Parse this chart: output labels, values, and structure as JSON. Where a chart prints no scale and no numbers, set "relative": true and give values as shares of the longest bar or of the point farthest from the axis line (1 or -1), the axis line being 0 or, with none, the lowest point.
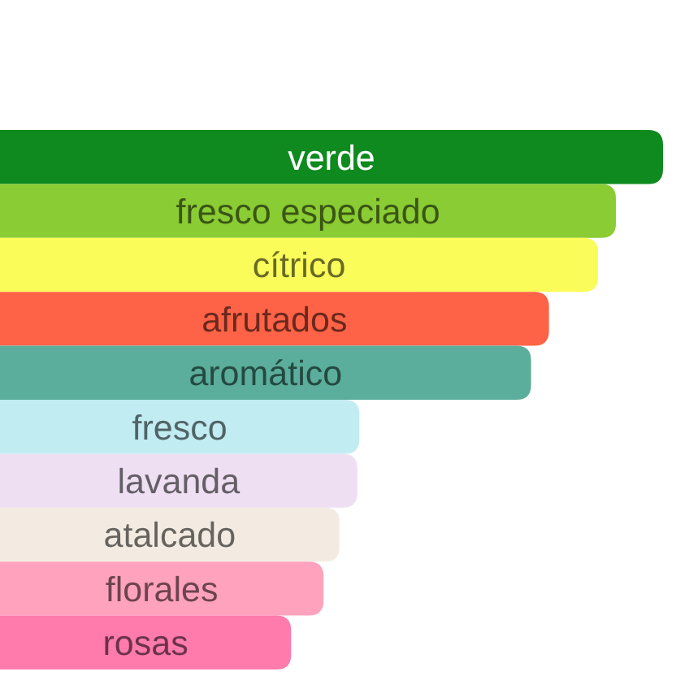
{
  "chart_data": {
    "type": "bar",
    "orientation": "horizontal",
    "relative": true,
    "categories": [
      "verde",
      "fresco especiado",
      "cítrico",
      "afrutados",
      "aromático",
      "fresco",
      "lavanda",
      "atalcado",
      "florales",
      "rosas"
    ],
    "values": [
      1,
      0.929,
      0.902,
      0.828,
      0.801,
      0.542,
      0.539,
      0.512,
      0.488,
      0.439
    ],
    "colors": [
      "#0e8a1f",
      "#8acc33",
      "#fafc5a",
      "#ff6347",
      "#5aae9b",
      "#c0ecf2",
      "#eedff2",
      "#f3ebe2",
      "#ffa2bd",
      "#ff7bac"
    ]
  }
}
